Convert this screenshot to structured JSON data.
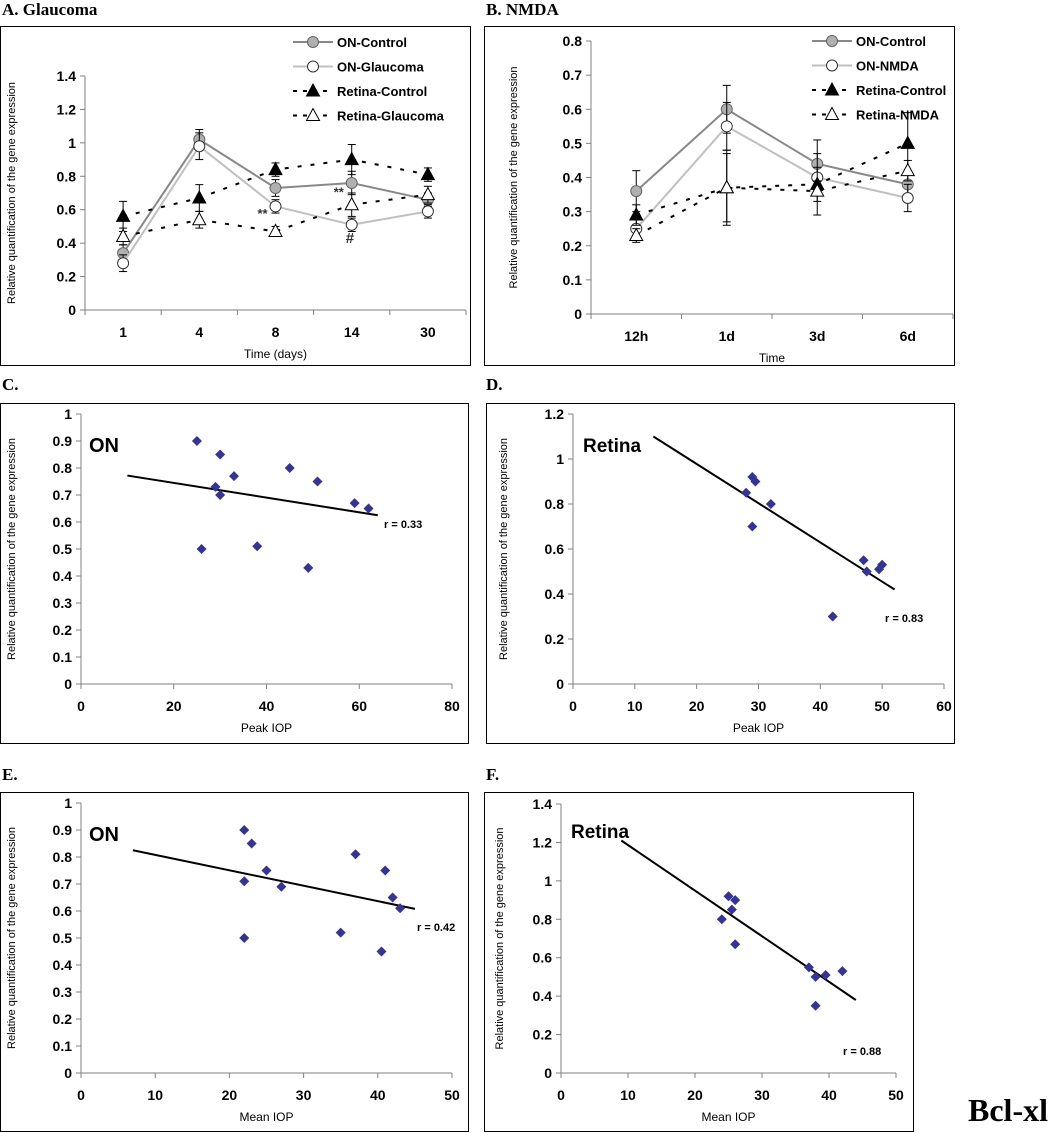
{
  "figure": {
    "gene_label": "Bcl-xl",
    "marker_color": "#333399"
  },
  "panels": {
    "A": {
      "label": "A. Glaucoma"
    },
    "B": {
      "label": "B. NMDA"
    },
    "C": {
      "label": "C.",
      "inset": "ON"
    },
    "D": {
      "label": "D.",
      "inset": "Retina"
    },
    "E": {
      "label": "E.",
      "inset": "ON"
    },
    "F": {
      "label": "F.",
      "inset": "Retina"
    }
  },
  "chart_data": [
    {
      "id": "A",
      "type": "line",
      "title": "A. Glaucoma",
      "xlabel": "Time (days)",
      "ylabel": "Relative quantification of the gene expression",
      "categories": [
        "1",
        "4",
        "8",
        "14",
        "30"
      ],
      "ylim": [
        0,
        1.4
      ],
      "yticks": [
        "0",
        "0.2",
        "0.4",
        "0.6",
        "0.8",
        "1",
        "1.2",
        "1.4"
      ],
      "legend_position": "top-right",
      "series": [
        {
          "name": "ON-Control",
          "style": "solid-dark-gray-filled-circle",
          "values": [
            0.34,
            1.02,
            0.73,
            0.76,
            0.66
          ],
          "errors": [
            0.05,
            0.06,
            0.05,
            0.07,
            0.04
          ]
        },
        {
          "name": "ON-Glaucoma",
          "style": "solid-light-gray-open-circle",
          "values": [
            0.28,
            0.98,
            0.62,
            0.51,
            0.59
          ],
          "errors": [
            0.05,
            0.08,
            0.04,
            0.04,
            0.04
          ]
        },
        {
          "name": "Retina-Control",
          "style": "dashed-black-filled-triangle",
          "values": [
            0.56,
            0.67,
            0.84,
            0.9,
            0.81
          ],
          "errors": [
            0.09,
            0.08,
            0.04,
            0.09,
            0.04
          ]
        },
        {
          "name": "Retina-Glaucoma",
          "style": "dashed-black-open-triangle",
          "values": [
            0.44,
            0.54,
            0.47,
            0.63,
            0.69
          ],
          "errors": [
            0.05,
            0.05,
            0.03,
            0.07,
            0.05
          ]
        }
      ],
      "annotations": [
        {
          "text": "**",
          "x": "8",
          "y": 0.55
        },
        {
          "text": "**",
          "x": "14",
          "y": 0.68
        },
        {
          "text": "#",
          "x": "14",
          "y": 0.4
        }
      ]
    },
    {
      "id": "B",
      "type": "line",
      "title": "B. NMDA",
      "xlabel": "Time",
      "ylabel": "Relative quantification of the gene expression",
      "categories": [
        "12h",
        "1d",
        "3d",
        "6d"
      ],
      "ylim": [
        0,
        0.8
      ],
      "yticks": [
        "0",
        "0.1",
        "0.2",
        "0.3",
        "0.4",
        "0.5",
        "0.6",
        "0.7",
        "0.8"
      ],
      "legend_position": "top-right",
      "series": [
        {
          "name": "ON-Control",
          "style": "solid-dark-gray-filled-circle",
          "values": [
            0.36,
            0.6,
            0.44,
            0.38
          ],
          "errors": [
            0.06,
            0.07,
            0.07,
            0.04
          ]
        },
        {
          "name": "ON-NMDA",
          "style": "solid-light-gray-open-circle",
          "values": [
            0.25,
            0.55,
            0.4,
            0.34
          ],
          "errors": [
            0.03,
            0.07,
            0.03,
            0.04
          ]
        },
        {
          "name": "Retina-Control",
          "style": "dashed-black-filled-triangle",
          "values": [
            0.29,
            0.37,
            0.38,
            0.5
          ],
          "errors": [
            0.03,
            0.11,
            0.09,
            0.09
          ]
        },
        {
          "name": "Retina-NMDA",
          "style": "dashed-black-open-triangle",
          "values": [
            0.23,
            0.37,
            0.36,
            0.42
          ],
          "errors": [
            0.02,
            0.1,
            0.03,
            0.03
          ]
        }
      ]
    },
    {
      "id": "C",
      "type": "scatter",
      "inset": "ON",
      "xlabel": "Peak IOP",
      "ylabel": "Relative quantification of the gene expression",
      "xlim": [
        0,
        80
      ],
      "ylim": [
        0,
        1
      ],
      "xticks": [
        "0",
        "20",
        "40",
        "60",
        "80"
      ],
      "yticks": [
        "0",
        "0.1",
        "0.2",
        "0.3",
        "0.4",
        "0.5",
        "0.6",
        "0.7",
        "0.8",
        "0.9",
        "1"
      ],
      "points": [
        [
          25,
          0.9
        ],
        [
          30,
          0.85
        ],
        [
          33,
          0.77
        ],
        [
          29,
          0.73
        ],
        [
          30,
          0.7
        ],
        [
          26,
          0.5
        ],
        [
          38,
          0.51
        ],
        [
          45,
          0.8
        ],
        [
          51,
          0.75
        ],
        [
          59,
          0.67
        ],
        [
          62,
          0.65
        ],
        [
          49,
          0.43
        ]
      ],
      "trendline": [
        [
          10,
          0.772
        ],
        [
          64,
          0.625
        ]
      ],
      "r_label": "r = 0.33"
    },
    {
      "id": "D",
      "type": "scatter",
      "inset": "Retina",
      "xlabel": "Peak IOP",
      "ylabel": "Relative quantification of the gene expression",
      "xlim": [
        0,
        60
      ],
      "ylim": [
        0,
        1.2
      ],
      "xticks": [
        "0",
        "10",
        "20",
        "30",
        "40",
        "50",
        "60"
      ],
      "yticks": [
        "0",
        "0.2",
        "0.4",
        "0.6",
        "0.8",
        "1",
        "1.2"
      ],
      "points": [
        [
          29,
          0.92
        ],
        [
          29.5,
          0.9
        ],
        [
          28,
          0.85
        ],
        [
          32,
          0.8
        ],
        [
          29,
          0.7
        ],
        [
          47,
          0.55
        ],
        [
          47.5,
          0.5
        ],
        [
          49.5,
          0.51
        ],
        [
          50,
          0.53
        ],
        [
          42,
          0.3
        ]
      ],
      "trendline": [
        [
          13,
          1.1
        ],
        [
          52,
          0.42
        ]
      ],
      "r_label": "r = 0.83"
    },
    {
      "id": "E",
      "type": "scatter",
      "inset": "ON",
      "xlabel": "Mean IOP",
      "ylabel": "Relative quantification of the gene expression",
      "xlim": [
        0,
        50
      ],
      "ylim": [
        0,
        1
      ],
      "xticks": [
        "0",
        "10",
        "20",
        "30",
        "40",
        "50"
      ],
      "yticks": [
        "0",
        "0.1",
        "0.2",
        "0.3",
        "0.4",
        "0.5",
        "0.6",
        "0.7",
        "0.8",
        "0.9",
        "1"
      ],
      "points": [
        [
          22,
          0.9
        ],
        [
          23,
          0.85
        ],
        [
          25,
          0.75
        ],
        [
          22,
          0.71
        ],
        [
          27,
          0.69
        ],
        [
          22,
          0.5
        ],
        [
          37,
          0.81
        ],
        [
          41,
          0.75
        ],
        [
          42,
          0.65
        ],
        [
          43,
          0.61
        ],
        [
          35,
          0.52
        ],
        [
          40.5,
          0.45
        ]
      ],
      "trendline": [
        [
          7,
          0.825
        ],
        [
          45,
          0.608
        ]
      ],
      "r_label": "r = 0.42"
    },
    {
      "id": "F",
      "type": "scatter",
      "inset": "Retina",
      "xlabel": "Mean IOP",
      "ylabel": "Relative quantification of the gene expression",
      "xlim": [
        0,
        50
      ],
      "ylim": [
        0,
        1.4
      ],
      "xticks": [
        "0",
        "10",
        "20",
        "30",
        "40",
        "50"
      ],
      "yticks": [
        "0",
        "0.2",
        "0.4",
        "0.6",
        "0.8",
        "1",
        "1.2",
        "1.4"
      ],
      "points": [
        [
          25,
          0.92
        ],
        [
          26,
          0.9
        ],
        [
          25.5,
          0.85
        ],
        [
          24,
          0.8
        ],
        [
          26,
          0.67
        ],
        [
          37,
          0.55
        ],
        [
          38,
          0.5
        ],
        [
          39.5,
          0.51
        ],
        [
          42,
          0.53
        ],
        [
          38,
          0.35
        ]
      ],
      "trendline": [
        [
          9,
          1.21
        ],
        [
          44,
          0.38
        ]
      ],
      "r_label": "r = 0.88"
    }
  ]
}
